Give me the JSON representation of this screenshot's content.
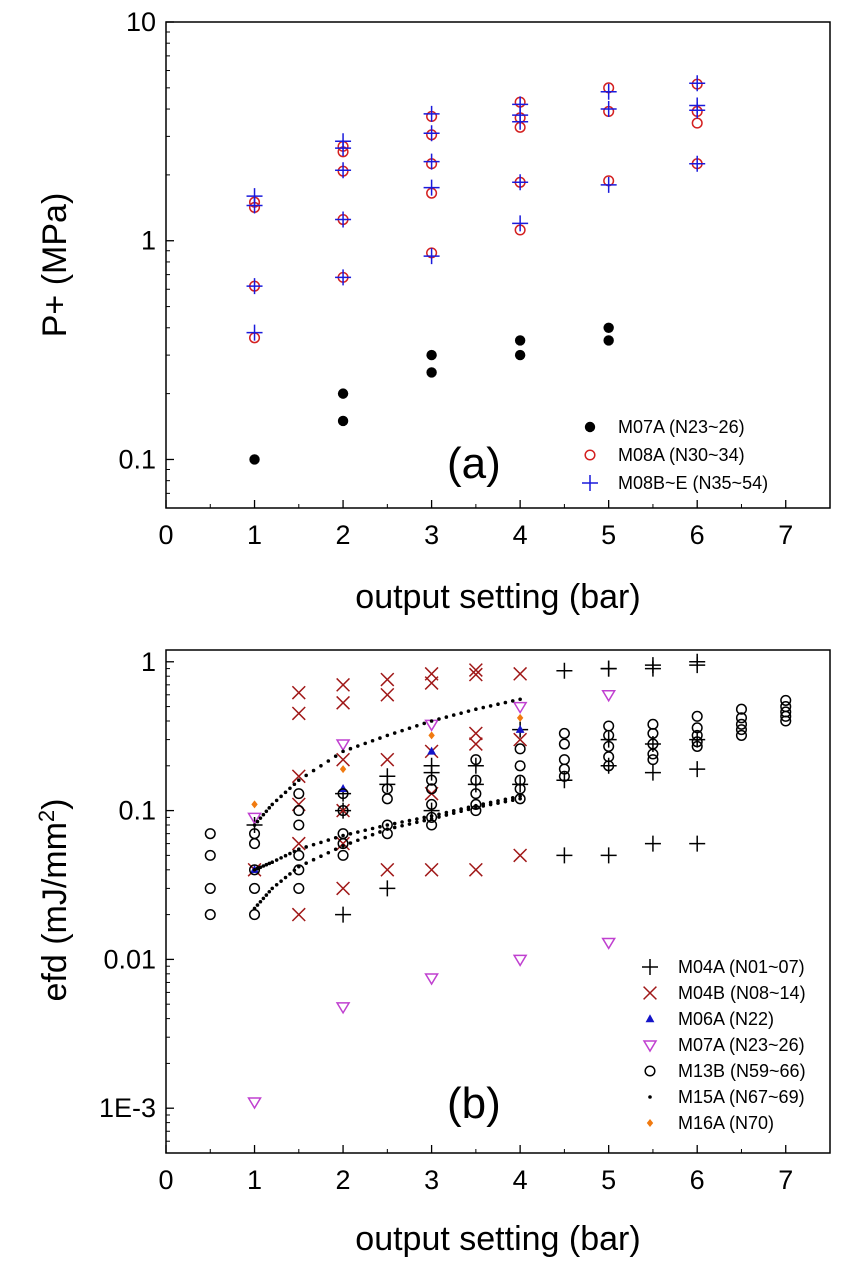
{
  "chart_data": [
    {
      "id": "a",
      "type": "scatter",
      "panel_label": "(a)",
      "xlabel": "output setting (bar)",
      "ylabel": "P+ (MPa)",
      "xscale": "linear",
      "yscale": "log",
      "xlim": [
        0,
        7.5
      ],
      "ylim": [
        0.06,
        10
      ],
      "xticks": [
        0,
        1,
        2,
        3,
        4,
        5,
        6,
        7
      ],
      "xtick_labels": [
        "0",
        "1",
        "2",
        "3",
        "4",
        "5",
        "6",
        "7"
      ],
      "yticks": [
        0.1,
        1,
        10
      ],
      "ytick_labels": [
        "0.1",
        "1",
        "10"
      ],
      "legend_position": "bottom-right",
      "series": [
        {
          "name": "M07A (N23~26)",
          "marker": "filled-circle",
          "color": "#000000",
          "points": [
            [
              1,
              0.1
            ],
            [
              2,
              0.2
            ],
            [
              2,
              0.15
            ],
            [
              3,
              0.3
            ],
            [
              3,
              0.25
            ],
            [
              4,
              0.35
            ],
            [
              4,
              0.3
            ],
            [
              5,
              0.4
            ],
            [
              5,
              0.35
            ]
          ]
        },
        {
          "name": "M08A (N30~34)",
          "marker": "open-circle",
          "color": "#d42020",
          "points": [
            [
              1,
              1.5
            ],
            [
              1,
              1.42
            ],
            [
              1,
              0.62
            ],
            [
              1,
              0.36
            ],
            [
              2,
              2.7
            ],
            [
              2,
              2.55
            ],
            [
              2,
              2.08
            ],
            [
              2,
              1.25
            ],
            [
              2,
              0.68
            ],
            [
              3,
              3.7
            ],
            [
              3,
              3.05
            ],
            [
              3,
              2.25
            ],
            [
              3,
              1.65
            ],
            [
              3,
              0.88
            ],
            [
              4,
              4.3
            ],
            [
              4,
              3.65
            ],
            [
              4,
              3.3
            ],
            [
              4,
              1.85
            ],
            [
              4,
              1.12
            ],
            [
              5,
              5.0
            ],
            [
              5,
              3.9
            ],
            [
              5,
              1.88
            ],
            [
              6,
              5.2
            ],
            [
              6,
              3.9
            ],
            [
              6,
              3.45
            ],
            [
              6,
              2.25
            ]
          ]
        },
        {
          "name": "M08B~E (N35~54)",
          "marker": "plus",
          "color": "#1a1adc",
          "points": [
            [
              1,
              1.6
            ],
            [
              1,
              1.45
            ],
            [
              1,
              0.62
            ],
            [
              1,
              0.38
            ],
            [
              2,
              2.85
            ],
            [
              2,
              2.65
            ],
            [
              2,
              2.1
            ],
            [
              2,
              1.25
            ],
            [
              2,
              0.68
            ],
            [
              3,
              3.8
            ],
            [
              3,
              3.1
            ],
            [
              3,
              2.3
            ],
            [
              3,
              1.75
            ],
            [
              3,
              0.85
            ],
            [
              4,
              4.2
            ],
            [
              4,
              3.75
            ],
            [
              4,
              3.5
            ],
            [
              4,
              1.85
            ],
            [
              4,
              1.2
            ],
            [
              5,
              4.8
            ],
            [
              5,
              4.0
            ],
            [
              5,
              1.8
            ],
            [
              6,
              5.25
            ],
            [
              6,
              4.15
            ],
            [
              6,
              3.95
            ],
            [
              6,
              2.25
            ]
          ]
        }
      ]
    },
    {
      "id": "b",
      "type": "scatter",
      "panel_label": "(b)",
      "xlabel": "output setting (bar)",
      "ylabel": "efd (mJ/mm",
      "ylabel_superscript": "2",
      "ylabel_suffix": ")",
      "xscale": "linear",
      "yscale": "log",
      "xlim": [
        0,
        7.5
      ],
      "ylim": [
        0.0005,
        1.2
      ],
      "xticks": [
        0,
        1,
        2,
        3,
        4,
        5,
        6,
        7
      ],
      "xtick_labels": [
        "0",
        "1",
        "2",
        "3",
        "4",
        "5",
        "6",
        "7"
      ],
      "yticks": [
        0.001,
        0.01,
        0.1,
        1
      ],
      "ytick_labels": [
        "1E-3",
        "0.01",
        "0.1",
        "1"
      ],
      "legend_position": "bottom-right",
      "series": [
        {
          "name": "M04A (N01~07)",
          "marker": "plus",
          "color": "#000000",
          "points": [
            [
              1,
              0.08
            ],
            [
              2,
              0.02
            ],
            [
              2,
              0.1
            ],
            [
              2,
              0.13
            ],
            [
              2.5,
              0.03
            ],
            [
              2.5,
              0.15
            ],
            [
              2.5,
              0.17
            ],
            [
              3,
              0.1
            ],
            [
              3,
              0.2
            ],
            [
              3,
              0.18
            ],
            [
              3.5,
              0.15
            ],
            [
              3.5,
              0.2
            ],
            [
              4,
              0.15
            ],
            [
              4,
              0.35
            ],
            [
              4.5,
              0.05
            ],
            [
              4.5,
              0.16
            ],
            [
              4.5,
              0.87
            ],
            [
              5,
              0.05
            ],
            [
              5,
              0.2
            ],
            [
              5,
              0.3
            ],
            [
              5,
              0.9
            ],
            [
              5,
              0.9
            ],
            [
              5.5,
              0.06
            ],
            [
              5.5,
              0.18
            ],
            [
              5.5,
              0.28
            ],
            [
              5.5,
              0.9
            ],
            [
              5.5,
              0.95
            ],
            [
              6,
              0.06
            ],
            [
              6,
              0.19
            ],
            [
              6,
              0.3
            ],
            [
              6,
              0.95
            ],
            [
              6,
              1.0
            ]
          ]
        },
        {
          "name": "M04B (N08~14)",
          "marker": "x",
          "color": "#a01818",
          "points": [
            [
              1,
              0.04
            ],
            [
              1.5,
              0.02
            ],
            [
              1.5,
              0.06
            ],
            [
              1.5,
              0.11
            ],
            [
              1.5,
              0.17
            ],
            [
              1.5,
              0.45
            ],
            [
              1.5,
              0.62
            ],
            [
              2,
              0.03
            ],
            [
              2,
              0.06
            ],
            [
              2,
              0.1
            ],
            [
              2,
              0.22
            ],
            [
              2,
              0.53
            ],
            [
              2,
              0.7
            ],
            [
              2.5,
              0.04
            ],
            [
              2.5,
              0.22
            ],
            [
              2.5,
              0.6
            ],
            [
              2.5,
              0.76
            ],
            [
              3,
              0.04
            ],
            [
              3,
              0.13
            ],
            [
              3,
              0.25
            ],
            [
              3,
              0.72
            ],
            [
              3,
              0.83
            ],
            [
              3.5,
              0.04
            ],
            [
              3.5,
              0.28
            ],
            [
              3.5,
              0.33
            ],
            [
              3.5,
              0.82
            ],
            [
              3.5,
              0.88
            ],
            [
              4,
              0.05
            ],
            [
              4,
              0.3
            ],
            [
              4,
              0.83
            ]
          ]
        },
        {
          "name": "M06A (N22)",
          "marker": "filled-triangle",
          "color": "#1414c8",
          "points": [
            [
              1,
              0.04
            ],
            [
              2,
              0.14
            ],
            [
              3,
              0.25
            ],
            [
              4,
              0.35
            ]
          ]
        },
        {
          "name": "M07A (N23~26)",
          "marker": "open-triangle-down",
          "color": "#c040d0",
          "points": [
            [
              1,
              0.09
            ],
            [
              1,
              0.0011
            ],
            [
              2,
              0.28
            ],
            [
              2,
              0.0048
            ],
            [
              3,
              0.38
            ],
            [
              3,
              0.0075
            ],
            [
              4,
              0.5
            ],
            [
              4,
              0.01
            ],
            [
              5,
              0.6
            ],
            [
              5,
              0.013
            ]
          ]
        },
        {
          "name": "M13B (N59~66)",
          "marker": "open-circle",
          "color": "#000000",
          "points": [
            [
              0.5,
              0.07
            ],
            [
              0.5,
              0.05
            ],
            [
              0.5,
              0.03
            ],
            [
              0.5,
              0.02
            ],
            [
              1,
              0.07
            ],
            [
              1,
              0.06
            ],
            [
              1,
              0.04
            ],
            [
              1,
              0.03
            ],
            [
              1,
              0.02
            ],
            [
              1.5,
              0.13
            ],
            [
              1.5,
              0.1
            ],
            [
              1.5,
              0.08
            ],
            [
              1.5,
              0.05
            ],
            [
              1.5,
              0.04
            ],
            [
              1.5,
              0.03
            ],
            [
              2,
              0.13
            ],
            [
              2,
              0.1
            ],
            [
              2,
              0.07
            ],
            [
              2,
              0.06
            ],
            [
              2,
              0.05
            ],
            [
              2.5,
              0.14
            ],
            [
              2.5,
              0.12
            ],
            [
              2.5,
              0.08
            ],
            [
              2.5,
              0.07
            ],
            [
              3,
              0.16
            ],
            [
              3,
              0.14
            ],
            [
              3,
              0.11
            ],
            [
              3,
              0.09
            ],
            [
              3,
              0.08
            ],
            [
              3.5,
              0.22
            ],
            [
              3.5,
              0.16
            ],
            [
              3.5,
              0.13
            ],
            [
              3.5,
              0.11
            ],
            [
              3.5,
              0.1
            ],
            [
              4,
              0.26
            ],
            [
              4,
              0.2
            ],
            [
              4,
              0.16
            ],
            [
              4,
              0.14
            ],
            [
              4,
              0.12
            ],
            [
              4.5,
              0.33
            ],
            [
              4.5,
              0.28
            ],
            [
              4.5,
              0.22
            ],
            [
              4.5,
              0.19
            ],
            [
              4.5,
              0.17
            ],
            [
              5,
              0.37
            ],
            [
              5,
              0.32
            ],
            [
              5,
              0.27
            ],
            [
              5,
              0.23
            ],
            [
              5,
              0.2
            ],
            [
              5.5,
              0.38
            ],
            [
              5.5,
              0.33
            ],
            [
              5.5,
              0.28
            ],
            [
              5.5,
              0.24
            ],
            [
              5.5,
              0.22
            ],
            [
              6,
              0.43
            ],
            [
              6,
              0.36
            ],
            [
              6,
              0.32
            ],
            [
              6,
              0.29
            ],
            [
              6,
              0.27
            ],
            [
              6.5,
              0.48
            ],
            [
              6.5,
              0.42
            ],
            [
              6.5,
              0.38
            ],
            [
              6.5,
              0.35
            ],
            [
              6.5,
              0.32
            ],
            [
              7,
              0.55
            ],
            [
              7,
              0.5
            ],
            [
              7,
              0.46
            ],
            [
              7,
              0.43
            ],
            [
              7,
              0.4
            ]
          ]
        },
        {
          "name": "M15A (N67~69)",
          "marker": "small-dot",
          "color": "#000000",
          "line_style": "dotted",
          "lines": [
            [
              [
                1,
                0.08
              ],
              [
                1.2,
                0.11
              ],
              [
                1.5,
                0.16
              ],
              [
                2,
                0.25
              ],
              [
                2.5,
                0.32
              ],
              [
                3,
                0.4
              ],
              [
                3.5,
                0.48
              ],
              [
                4,
                0.56
              ]
            ],
            [
              [
                1,
                0.04
              ],
              [
                1.2,
                0.045
              ],
              [
                1.5,
                0.055
              ],
              [
                2,
                0.068
              ],
              [
                2.5,
                0.08
              ],
              [
                3,
                0.092
              ],
              [
                3.5,
                0.108
              ],
              [
                4,
                0.125
              ]
            ],
            [
              [
                1,
                0.022
              ],
              [
                1.2,
                0.03
              ],
              [
                1.5,
                0.042
              ],
              [
                2,
                0.058
              ],
              [
                2.5,
                0.075
              ],
              [
                3,
                0.088
              ],
              [
                3.5,
                0.105
              ],
              [
                4,
                0.12
              ]
            ]
          ]
        },
        {
          "name": "M16A (N70)",
          "marker": "filled-diamond",
          "color": "#f07a10",
          "points": [
            [
              1,
              0.11
            ],
            [
              2,
              0.19
            ],
            [
              3,
              0.32
            ],
            [
              4,
              0.42
            ]
          ]
        }
      ]
    }
  ]
}
